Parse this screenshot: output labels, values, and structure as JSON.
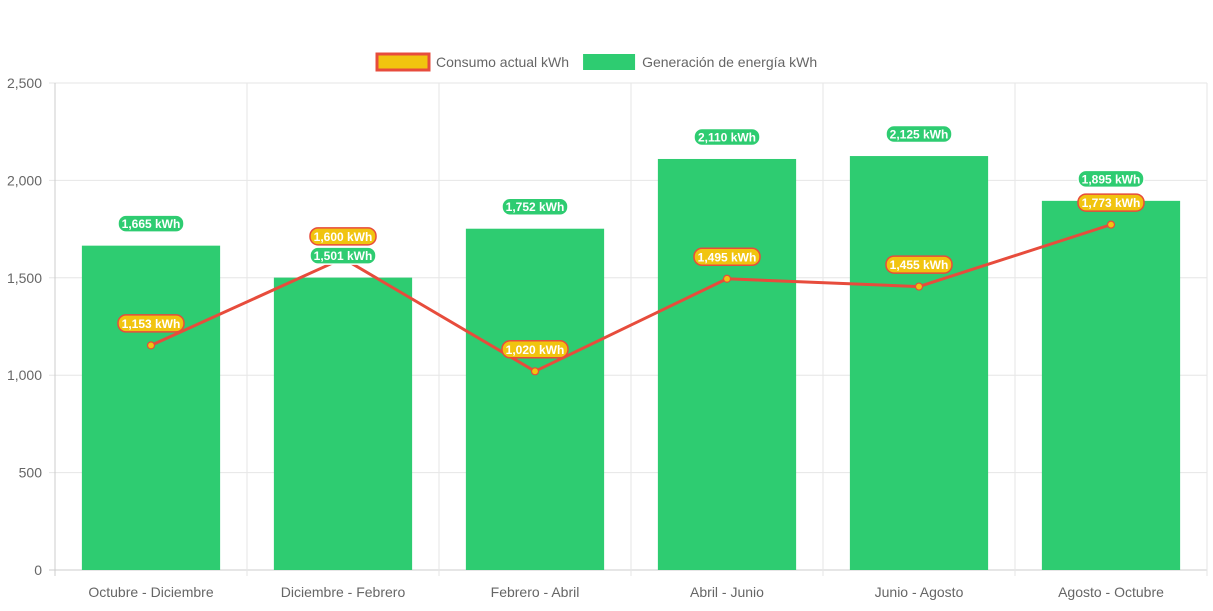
{
  "chart_data": {
    "type": "bar",
    "categories": [
      "Octubre - Diciembre",
      "Diciembre - Febrero",
      "Febrero - Abril",
      "Abril - Junio",
      "Junio - Agosto",
      "Agosto - Octubre"
    ],
    "series": [
      {
        "name": "Generación de energía kWh",
        "type": "bar",
        "color": "#2ecc71",
        "values": [
          1665,
          1501,
          1752,
          2110,
          2125,
          1895
        ],
        "labels": [
          "1,665 kWh",
          "1,501 kWh",
          "1,752 kWh",
          "2,110 kWh",
          "2,125 kWh",
          "1,895 kWh"
        ]
      },
      {
        "name": "Consumo actual kWh",
        "type": "line",
        "color": "#e74c3c",
        "fill": "#f1c40f",
        "values": [
          1153,
          1600,
          1020,
          1495,
          1455,
          1773
        ],
        "labels": [
          "1,153 kWh",
          "1,600 kWh",
          "1,020 kWh",
          "1,495 kWh",
          "1,455 kWh",
          "1,773 kWh"
        ]
      }
    ],
    "legend": {
      "position": "top",
      "order": [
        "Consumo actual kWh",
        "Generación de energía kWh"
      ]
    },
    "ylim": [
      0,
      2500
    ],
    "yticks": [
      0,
      500,
      1000,
      1500,
      2000,
      2500
    ],
    "ytick_labels": [
      "0",
      "500",
      "1,000",
      "1,500",
      "2,000",
      "2,500"
    ],
    "grid": true,
    "xlabel": "",
    "ylabel": "",
    "title": ""
  }
}
